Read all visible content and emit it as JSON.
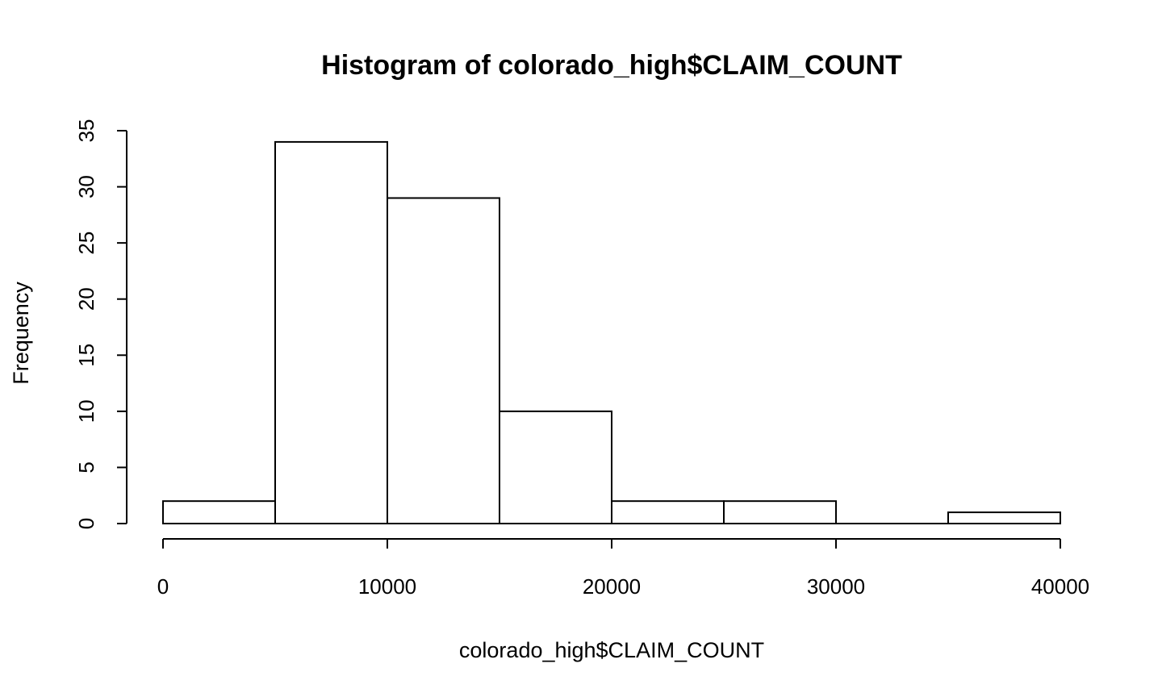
{
  "chart_data": {
    "type": "bar",
    "title": "Histogram of colorado_high$CLAIM_COUNT",
    "xlabel": "colorado_high$CLAIM_COUNT",
    "ylabel": "Frequency",
    "bins": [
      {
        "from": 0,
        "to": 5000,
        "count": 2
      },
      {
        "from": 5000,
        "to": 10000,
        "count": 34
      },
      {
        "from": 10000,
        "to": 15000,
        "count": 29
      },
      {
        "from": 15000,
        "to": 20000,
        "count": 10
      },
      {
        "from": 20000,
        "to": 25000,
        "count": 2
      },
      {
        "from": 25000,
        "to": 30000,
        "count": 2
      },
      {
        "from": 30000,
        "to": 35000,
        "count": 0
      },
      {
        "from": 35000,
        "to": 40000,
        "count": 1
      }
    ],
    "xlim": [
      0,
      40000
    ],
    "ylim": [
      0,
      35
    ],
    "x_ticks": [
      0,
      10000,
      20000,
      30000,
      40000
    ],
    "x_tick_labels": [
      "0",
      "10000",
      "20000",
      "30000",
      "40000"
    ],
    "y_ticks": [
      0,
      5,
      10,
      15,
      20,
      25,
      30,
      35
    ],
    "y_tick_labels": [
      "0",
      "5",
      "10",
      "15",
      "20",
      "25",
      "30",
      "35"
    ],
    "bar_fill": "#ffffff",
    "bar_stroke": "#000000",
    "grid": false,
    "legend": "none"
  }
}
